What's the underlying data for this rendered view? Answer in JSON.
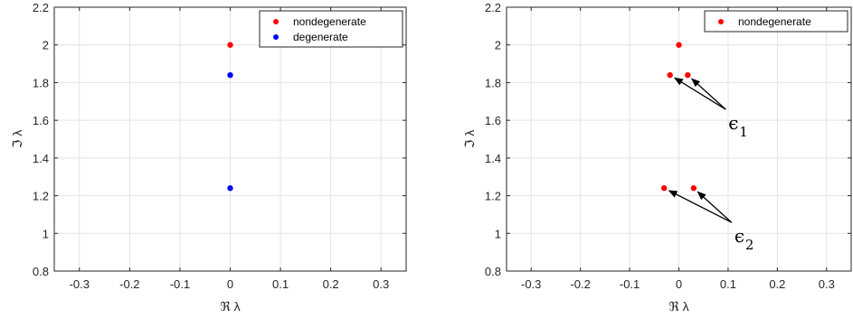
{
  "chart_data": [
    {
      "type": "scatter",
      "xlabel": "ℜ λ",
      "ylabel": "ℑ λ",
      "xlim": [
        -0.35,
        0.35
      ],
      "ylim": [
        0.8,
        2.2
      ],
      "xticks": [
        -0.3,
        -0.2,
        -0.1,
        0,
        0.1,
        0.2,
        0.3
      ],
      "yticks": [
        0.8,
        1,
        1.2,
        1.4,
        1.6,
        1.8,
        2,
        2.2
      ],
      "xtick_labels": [
        "-0.3",
        "-0.2",
        "-0.1",
        "0",
        "0.1",
        "0.2",
        "0.3"
      ],
      "ytick_labels": [
        "0.8",
        "1",
        "1.2",
        "1.4",
        "1.6",
        "1.8",
        "2",
        "2.2"
      ],
      "grid": true,
      "legend_position": "top-right",
      "series": [
        {
          "name": "nondegenerate",
          "color": "#ff0000",
          "points": [
            {
              "x": 0,
              "y": 2.0
            }
          ]
        },
        {
          "name": "degenerate",
          "color": "#0000ff",
          "points": [
            {
              "x": 0,
              "y": 1.84
            },
            {
              "x": 0,
              "y": 1.24
            }
          ]
        }
      ]
    },
    {
      "type": "scatter",
      "xlabel": "ℜ λ",
      "ylabel": "ℑ λ",
      "xlim": [
        -0.35,
        0.35
      ],
      "ylim": [
        0.8,
        2.2
      ],
      "xticks": [
        -0.3,
        -0.2,
        -0.1,
        0,
        0.1,
        0.2,
        0.3
      ],
      "yticks": [
        0.8,
        1,
        1.2,
        1.4,
        1.6,
        1.8,
        2,
        2.2
      ],
      "xtick_labels": [
        "-0.3",
        "-0.2",
        "-0.1",
        "0",
        "0.1",
        "0.2",
        "0.3"
      ],
      "ytick_labels": [
        "0.8",
        "1",
        "1.2",
        "1.4",
        "1.6",
        "1.8",
        "2",
        "2.2"
      ],
      "grid": true,
      "legend_position": "top-right",
      "series": [
        {
          "name": "nondegenerate",
          "color": "#ff0000",
          "points": [
            {
              "x": 0,
              "y": 2.0
            },
            {
              "x": -0.018,
              "y": 1.84
            },
            {
              "x": 0.018,
              "y": 1.84
            },
            {
              "x": -0.03,
              "y": 1.24
            },
            {
              "x": 0.03,
              "y": 1.24
            }
          ]
        }
      ],
      "annotations": [
        {
          "symbol": "ϵ",
          "subscript": "1",
          "points_to": [
            {
              "x": -0.018,
              "y": 1.84
            },
            {
              "x": 0.018,
              "y": 1.84
            }
          ]
        },
        {
          "symbol": "ϵ",
          "subscript": "2",
          "points_to": [
            {
              "x": -0.03,
              "y": 1.24
            },
            {
              "x": 0.03,
              "y": 1.24
            }
          ]
        }
      ]
    }
  ]
}
